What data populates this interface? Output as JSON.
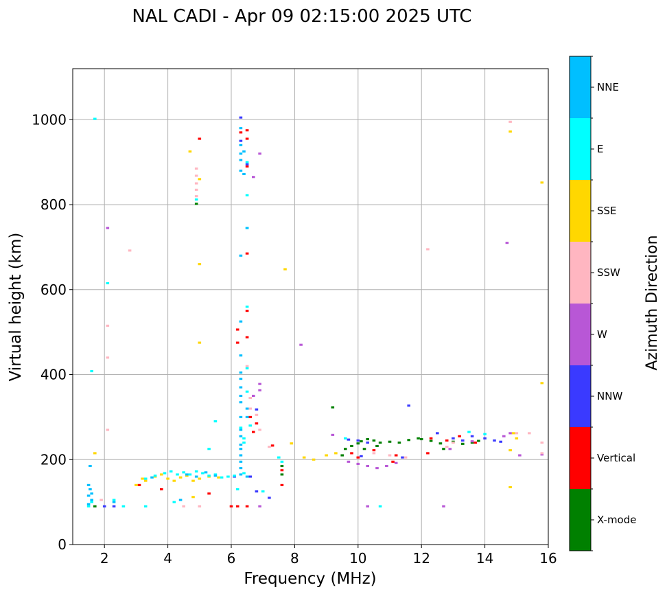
{
  "chart_data": {
    "type": "scatter",
    "title": "NAL CADI - Apr 09 02:15:00 2025 UTC",
    "xlabel": "Frequency (MHz)",
    "ylabel": "Virtual height (km)",
    "xlim": [
      1,
      16
    ],
    "ylim": [
      0,
      1120
    ],
    "xticks": [
      2,
      4,
      6,
      8,
      10,
      12,
      14,
      16
    ],
    "yticks": [
      0,
      200,
      400,
      600,
      800,
      1000
    ],
    "grid": true,
    "colorbar": {
      "label": "Azimuth Direction",
      "position": "right",
      "categories": [
        "X-mode",
        "Vertical",
        "NNW",
        "W",
        "SSW",
        "SSE",
        "E",
        "NNE"
      ],
      "colors": [
        "#008000",
        "#ff0000",
        "#3a3aff",
        "#b857d6",
        "#ffb6c1",
        "#ffd700",
        "#00ffff",
        "#00bfff"
      ]
    },
    "echo_cell_width_mhz": 0.1,
    "echo_cell_height_km": 5,
    "series": [
      {
        "name": "X-mode",
        "points": [
          [
            9.2,
            323
          ],
          [
            9.5,
            210
          ],
          [
            9.6,
            225
          ],
          [
            9.8,
            232
          ],
          [
            10.0,
            238
          ],
          [
            10.1,
            243
          ],
          [
            10.3,
            248
          ],
          [
            10.5,
            245
          ],
          [
            10.7,
            240
          ],
          [
            11.0,
            242
          ],
          [
            11.3,
            240
          ],
          [
            11.6,
            246
          ],
          [
            12.0,
            248
          ],
          [
            12.3,
            244
          ],
          [
            12.6,
            238
          ],
          [
            13.0,
            242
          ],
          [
            13.3,
            237
          ],
          [
            13.6,
            240
          ],
          [
            13.8,
            244
          ],
          [
            12.7,
            225
          ],
          [
            7.6,
            165
          ],
          [
            7.6,
            185
          ],
          [
            1.7,
            90
          ],
          [
            4.9,
            802
          ],
          [
            10.2,
            225
          ],
          [
            10.6,
            232
          ],
          [
            11.9,
            250
          ]
        ]
      },
      {
        "name": "Vertical",
        "points": [
          [
            6.3,
            970
          ],
          [
            6.5,
            975
          ],
          [
            6.5,
            955
          ],
          [
            6.5,
            890
          ],
          [
            6.5,
            550
          ],
          [
            6.5,
            488
          ],
          [
            6.5,
            685
          ],
          [
            6.2,
            506
          ],
          [
            6.2,
            475
          ],
          [
            6.6,
            300
          ],
          [
            6.8,
            285
          ],
          [
            7.6,
            140
          ],
          [
            7.3,
            233
          ],
          [
            7.6,
            175
          ],
          [
            5.3,
            120
          ],
          [
            6.0,
            90
          ],
          [
            6.2,
            90
          ],
          [
            6.5,
            90
          ],
          [
            3.8,
            130
          ],
          [
            10.0,
            205
          ],
          [
            11.2,
            210
          ],
          [
            12.2,
            215
          ],
          [
            12.3,
            250
          ],
          [
            12.8,
            245
          ],
          [
            13.2,
            255
          ],
          [
            13.7,
            240
          ],
          [
            10.5,
            222
          ],
          [
            9.8,
            215
          ],
          [
            11.1,
            195
          ],
          [
            5.0,
            955
          ],
          [
            6.7,
            265
          ],
          [
            3.1,
            140
          ]
        ]
      },
      {
        "name": "NNW",
        "points": [
          [
            6.3,
            1005
          ],
          [
            6.3,
            950
          ],
          [
            6.5,
            895
          ],
          [
            6.8,
            318
          ],
          [
            6.8,
            125
          ],
          [
            7.2,
            110
          ],
          [
            9.7,
            247
          ],
          [
            10.0,
            245
          ],
          [
            10.3,
            240
          ],
          [
            12.5,
            262
          ],
          [
            13.0,
            250
          ],
          [
            13.3,
            245
          ],
          [
            13.6,
            255
          ],
          [
            14.0,
            250
          ],
          [
            14.3,
            245
          ],
          [
            14.5,
            242
          ],
          [
            11.6,
            327
          ],
          [
            2.0,
            90
          ],
          [
            2.3,
            90
          ],
          [
            6.1,
            160
          ],
          [
            6.6,
            160
          ],
          [
            10.1,
            208
          ],
          [
            11.4,
            205
          ]
        ]
      },
      {
        "name": "W",
        "points": [
          [
            6.7,
            865
          ],
          [
            6.9,
            920
          ],
          [
            6.9,
            378
          ],
          [
            6.9,
            363
          ],
          [
            6.7,
            350
          ],
          [
            8.2,
            470
          ],
          [
            9.2,
            258
          ],
          [
            9.7,
            195
          ],
          [
            10.0,
            190
          ],
          [
            10.3,
            185
          ],
          [
            10.6,
            180
          ],
          [
            10.9,
            185
          ],
          [
            11.2,
            192
          ],
          [
            12.7,
            90
          ],
          [
            12.9,
            225
          ],
          [
            14.7,
            710
          ],
          [
            14.8,
            262
          ],
          [
            15.1,
            210
          ],
          [
            15.8,
            212
          ],
          [
            2.1,
            745
          ],
          [
            6.9,
            90
          ],
          [
            10.3,
            90
          ],
          [
            13.6,
            243
          ],
          [
            14.6,
            255
          ]
        ]
      },
      {
        "name": "SSW",
        "points": [
          [
            4.9,
            885
          ],
          [
            4.9,
            868
          ],
          [
            4.9,
            850
          ],
          [
            4.9,
            835
          ],
          [
            4.9,
            820
          ],
          [
            6.5,
            420
          ],
          [
            6.6,
            345
          ],
          [
            6.6,
            320
          ],
          [
            6.8,
            305
          ],
          [
            6.9,
            270
          ],
          [
            5.0,
            90
          ],
          [
            4.5,
            90
          ],
          [
            7.2,
            230
          ],
          [
            10.5,
            215
          ],
          [
            11.0,
            210
          ],
          [
            11.5,
            205
          ],
          [
            12.2,
            695
          ],
          [
            14.8,
            995
          ],
          [
            15.0,
            262
          ],
          [
            15.4,
            262
          ],
          [
            15.8,
            240
          ],
          [
            15.8,
            215
          ],
          [
            13.0,
            240
          ],
          [
            12.8,
            230
          ],
          [
            2.1,
            440
          ],
          [
            2.1,
            270
          ],
          [
            2.8,
            692
          ],
          [
            1.9,
            105
          ],
          [
            2.1,
            515
          ]
        ]
      },
      {
        "name": "SSE",
        "points": [
          [
            3.0,
            140
          ],
          [
            3.3,
            150
          ],
          [
            3.6,
            160
          ],
          [
            3.8,
            165
          ],
          [
            4.0,
            155
          ],
          [
            4.2,
            150
          ],
          [
            4.4,
            158
          ],
          [
            4.6,
            162
          ],
          [
            4.8,
            150
          ],
          [
            5.0,
            155
          ],
          [
            5.3,
            160
          ],
          [
            5.6,
            158
          ],
          [
            8.3,
            205
          ],
          [
            8.6,
            200
          ],
          [
            9.0,
            210
          ],
          [
            9.3,
            215
          ],
          [
            14.8,
            972
          ],
          [
            15.8,
            852
          ],
          [
            15.8,
            380
          ],
          [
            14.9,
            262
          ],
          [
            15.0,
            250
          ],
          [
            14.8,
            222
          ],
          [
            14.8,
            135
          ],
          [
            4.7,
            925
          ],
          [
            5.0,
            660
          ],
          [
            7.7,
            648
          ],
          [
            7.9,
            238
          ],
          [
            5.0,
            475
          ],
          [
            4.8,
            112
          ],
          [
            1.7,
            215
          ],
          [
            5.0,
            860
          ],
          [
            3.2,
            155
          ]
        ]
      },
      {
        "name": "E",
        "points": [
          [
            3.3,
            155
          ],
          [
            3.6,
            162
          ],
          [
            3.9,
            168
          ],
          [
            4.1,
            172
          ],
          [
            4.3,
            165
          ],
          [
            4.5,
            170
          ],
          [
            4.7,
            165
          ],
          [
            4.9,
            172
          ],
          [
            5.1,
            168
          ],
          [
            5.3,
            162
          ],
          [
            5.5,
            165
          ],
          [
            5.7,
            158
          ],
          [
            5.9,
            160
          ],
          [
            6.1,
            162
          ],
          [
            6.4,
            168
          ],
          [
            5.5,
            290
          ],
          [
            6.5,
            745
          ],
          [
            6.5,
            900
          ],
          [
            6.5,
            822
          ],
          [
            6.5,
            560
          ],
          [
            6.5,
            415
          ],
          [
            6.4,
            250
          ],
          [
            6.4,
            240
          ],
          [
            6.6,
            280
          ],
          [
            6.5,
            360
          ],
          [
            7.0,
            125
          ],
          [
            7.5,
            205
          ],
          [
            6.2,
            130
          ],
          [
            6.3,
            275
          ],
          [
            9.6,
            250
          ],
          [
            13.5,
            265
          ],
          [
            14.0,
            260
          ],
          [
            10.7,
            90
          ],
          [
            1.6,
            408
          ],
          [
            2.1,
            615
          ],
          [
            1.7,
            1002
          ],
          [
            2.3,
            105
          ],
          [
            2.6,
            90
          ],
          [
            3.3,
            90
          ],
          [
            5.3,
            225
          ],
          [
            4.2,
            100
          ],
          [
            4.9,
            812
          ],
          [
            1.6,
            100
          ],
          [
            1.5,
            90
          ],
          [
            7.6,
            195
          ]
        ]
      },
      {
        "name": "NNE",
        "points": [
          [
            1.5,
            140
          ],
          [
            1.55,
            130
          ],
          [
            1.6,
            120
          ],
          [
            1.5,
            115
          ],
          [
            1.6,
            105
          ],
          [
            1.5,
            95
          ],
          [
            1.55,
            185
          ],
          [
            6.3,
            980
          ],
          [
            6.3,
            940
          ],
          [
            6.3,
            920
          ],
          [
            6.3,
            905
          ],
          [
            6.4,
            925
          ],
          [
            6.3,
            880
          ],
          [
            6.3,
            680
          ],
          [
            6.3,
            525
          ],
          [
            6.3,
            445
          ],
          [
            6.3,
            405
          ],
          [
            6.3,
            390
          ],
          [
            6.3,
            370
          ],
          [
            6.3,
            350
          ],
          [
            6.3,
            335
          ],
          [
            6.3,
            300
          ],
          [
            6.3,
            270
          ],
          [
            6.3,
            255
          ],
          [
            6.3,
            235
          ],
          [
            6.3,
            225
          ],
          [
            6.3,
            210
          ],
          [
            6.3,
            195
          ],
          [
            6.3,
            180
          ],
          [
            6.3,
            165
          ],
          [
            6.5,
            160
          ],
          [
            6.5,
            320
          ],
          [
            6.5,
            300
          ],
          [
            4.6,
            165
          ],
          [
            4.9,
            160
          ],
          [
            5.2,
            170
          ],
          [
            5.5,
            162
          ],
          [
            3.5,
            158
          ],
          [
            4.4,
            105
          ],
          [
            2.3,
            100
          ],
          [
            6.4,
            872
          ],
          [
            6.5,
            745
          ]
        ]
      }
    ]
  }
}
